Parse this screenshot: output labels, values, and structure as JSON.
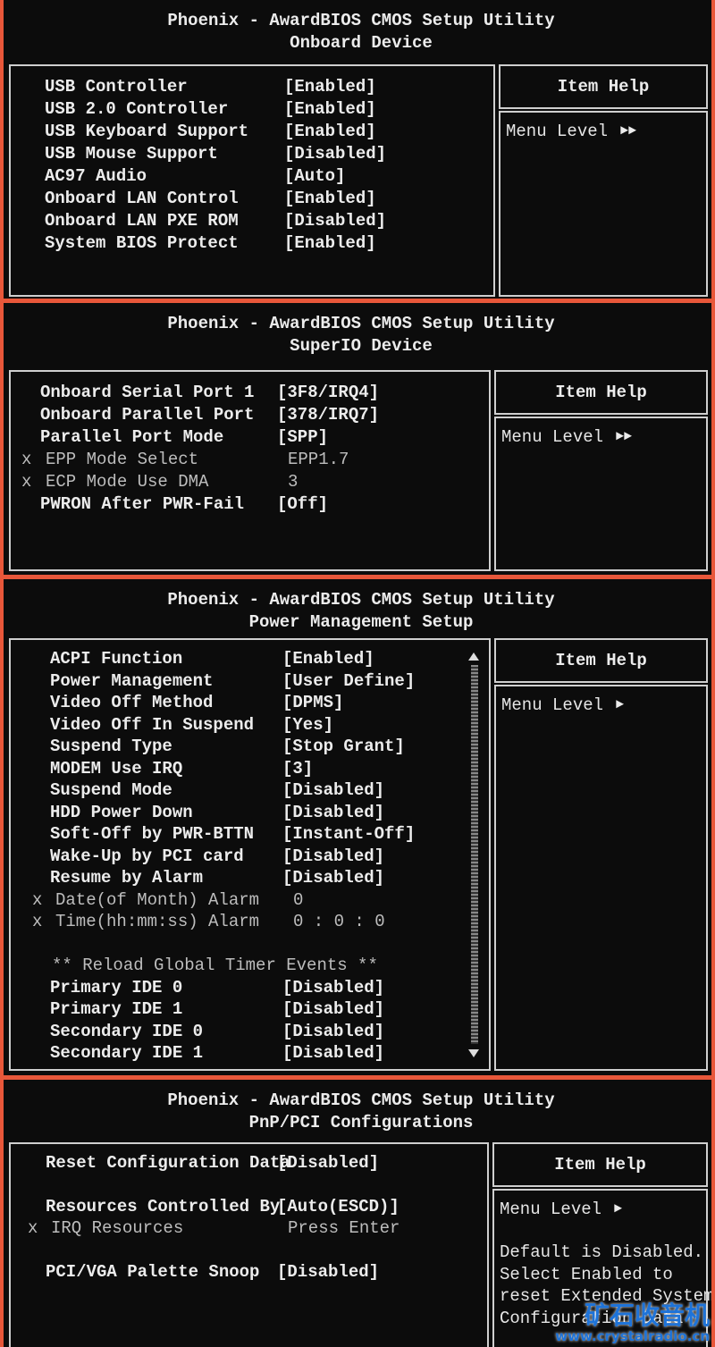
{
  "panels": [
    {
      "title": "Phoenix - AwardBIOS CMOS Setup Utility",
      "subtitle": "Onboard Device",
      "groups": [
        [
          {
            "label": "USB Controller",
            "value": "[Enabled]"
          },
          {
            "label": "USB 2.0 Controller",
            "value": "[Enabled]"
          },
          {
            "label": "USB Keyboard Support",
            "value": "[Enabled]"
          },
          {
            "label": "USB Mouse Support",
            "value": "[Disabled]"
          },
          {
            "label": "AC97 Audio",
            "value": "[Auto]"
          },
          {
            "label": "Onboard LAN Control",
            "value": "[Enabled]"
          },
          {
            "label": "Onboard LAN PXE ROM",
            "value": "[Disabled]"
          },
          {
            "label": "System BIOS Protect",
            "value": "[Enabled]"
          }
        ]
      ],
      "help": {
        "title": "Item Help",
        "menu_level": "Menu Level",
        "arrow": "►►"
      }
    },
    {
      "title": "Phoenix - AwardBIOS CMOS Setup Utility",
      "subtitle": "SuperIO Device",
      "groups": [
        [
          {
            "label": "Onboard Serial Port 1",
            "value": "[3F8/IRQ4]"
          },
          {
            "label": "Onboard Parallel Port",
            "value": "[378/IRQ7]"
          },
          {
            "label": "Parallel Port Mode",
            "value": "[SPP]"
          },
          {
            "prefix": "x",
            "label": "EPP Mode Select",
            "value": "EPP1.7"
          },
          {
            "prefix": "x",
            "label": "ECP Mode Use DMA",
            "value": "3"
          },
          {
            "label": "PWRON After PWR-Fail",
            "value": "[Off]"
          }
        ]
      ],
      "help": {
        "title": "Item Help",
        "menu_level": "Menu Level",
        "arrow": "►►"
      }
    },
    {
      "title": "Phoenix - AwardBIOS CMOS Setup Utility",
      "subtitle": "Power Management Setup",
      "groups": [
        [
          {
            "label": "ACPI Function",
            "value": "[Enabled]"
          },
          {
            "label": "Power Management",
            "value": "[User Define]"
          },
          {
            "label": "Video Off Method",
            "value": "[DPMS]"
          },
          {
            "label": "Video Off In Suspend",
            "value": "[Yes]"
          },
          {
            "label": "Suspend Type",
            "value": "[Stop Grant]"
          },
          {
            "label": "MODEM Use IRQ",
            "value": "[3]"
          },
          {
            "label": "Suspend Mode",
            "value": "[Disabled]"
          },
          {
            "label": "HDD Power Down",
            "value": "[Disabled]"
          },
          {
            "label": "Soft-Off by PWR-BTTN",
            "value": "[Instant-Off]"
          },
          {
            "label": "Wake-Up by PCI card",
            "value": "[Disabled]"
          },
          {
            "label": "Resume by Alarm",
            "value": "[Disabled]"
          },
          {
            "prefix": "x",
            "label": "Date(of Month) Alarm",
            "value": "0"
          },
          {
            "prefix": "x",
            "label": "Time(hh:mm:ss) Alarm",
            "value": "0 : 0 : 0"
          }
        ],
        [
          {
            "prefix": "",
            "label": "** Reload Global Timer Events **",
            "heading": true
          },
          {
            "label": "Primary IDE 0",
            "value": "[Disabled]"
          },
          {
            "label": "Primary IDE 1",
            "value": "[Disabled]"
          },
          {
            "label": "Secondary IDE 0",
            "value": "[Disabled]"
          },
          {
            "label": "Secondary IDE 1",
            "value": "[Disabled]"
          }
        ]
      ],
      "scrollbar": true,
      "help": {
        "title": "Item Help",
        "menu_level": "Menu Level",
        "arrow": "►"
      }
    },
    {
      "title": "Phoenix - AwardBIOS CMOS Setup Utility",
      "subtitle": "PnP/PCI Configurations",
      "groups": [
        [
          {
            "label": "Reset Configuration Data",
            "value": "[Disabled]"
          }
        ],
        [
          {
            "label": "Resources Controlled By",
            "value": "[Auto(ESCD)]"
          },
          {
            "prefix": "x",
            "label": "IRQ Resources",
            "value": "Press Enter"
          }
        ],
        [
          {
            "label": "PCI/VGA Palette Snoop",
            "value": "[Disabled]"
          }
        ]
      ],
      "help": {
        "title": "Item Help",
        "menu_level": "Menu Level",
        "arrow": "►",
        "text": [
          "Default is Disabled.",
          "Select Enabled to",
          "reset Extended System",
          "Configuration Data"
        ]
      }
    }
  ],
  "watermark": {
    "cn": "矿石收音机",
    "url": "www.crystalradio.cn"
  }
}
